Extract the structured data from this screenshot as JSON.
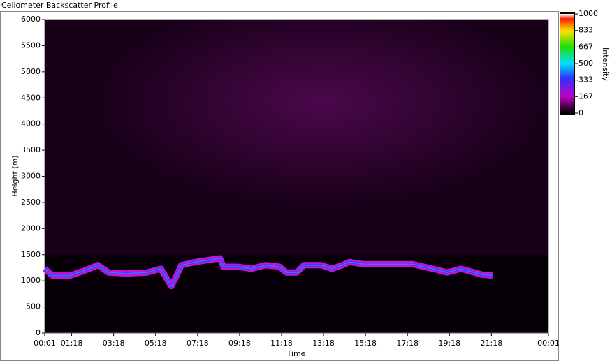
{
  "chart_data": {
    "type": "line",
    "title": "Ceilometer Backscatter Profile",
    "x_label": "Time",
    "y_label": "Height (m)",
    "xlim": [
      1,
      1441
    ],
    "ylim": [
      0,
      6000
    ],
    "xticks": [
      {
        "value": 1,
        "label": "00:01"
      },
      {
        "value": 78,
        "label": "01:18"
      },
      {
        "value": 198,
        "label": "03:18"
      },
      {
        "value": 318,
        "label": "05:18"
      },
      {
        "value": 438,
        "label": "07:18"
      },
      {
        "value": 558,
        "label": "09:18"
      },
      {
        "value": 678,
        "label": "11:18"
      },
      {
        "value": 798,
        "label": "13:18"
      },
      {
        "value": 918,
        "label": "15:18"
      },
      {
        "value": 1038,
        "label": "17:18"
      },
      {
        "value": 1158,
        "label": "19:18"
      },
      {
        "value": 1278,
        "label": "21:18"
      },
      {
        "value": 1441,
        "label": "00:01"
      }
    ],
    "yticks": [
      0,
      500,
      1000,
      1500,
      2000,
      2500,
      3000,
      3500,
      4000,
      4500,
      5000,
      5500,
      6000
    ],
    "x": [
      1,
      23,
      73,
      113,
      153,
      183,
      233,
      293,
      333,
      363,
      373,
      392,
      432,
      472,
      502,
      512,
      552,
      592,
      632,
      672,
      692,
      722,
      742,
      792,
      822,
      852,
      872,
      912,
      992,
      1052,
      1111,
      1151,
      1191,
      1251,
      1281
    ],
    "series": [
      {
        "color": "#3a3aff",
        "values": [
          1230,
          1100,
          1100,
          1190,
          1300,
          1160,
          1140,
          1160,
          1230,
          900,
          1030,
          1300,
          1360,
          1400,
          1430,
          1270,
          1270,
          1230,
          1300,
          1270,
          1160,
          1160,
          1300,
          1300,
          1230,
          1300,
          1360,
          1320,
          1320,
          1320,
          1230,
          1160,
          1230,
          1120,
          1100
        ]
      }
    ],
    "colorbar": {
      "label": "Intensity",
      "lim": [
        0,
        1000
      ],
      "ticks": [
        0,
        167,
        333,
        500,
        667,
        833,
        1000
      ]
    }
  }
}
